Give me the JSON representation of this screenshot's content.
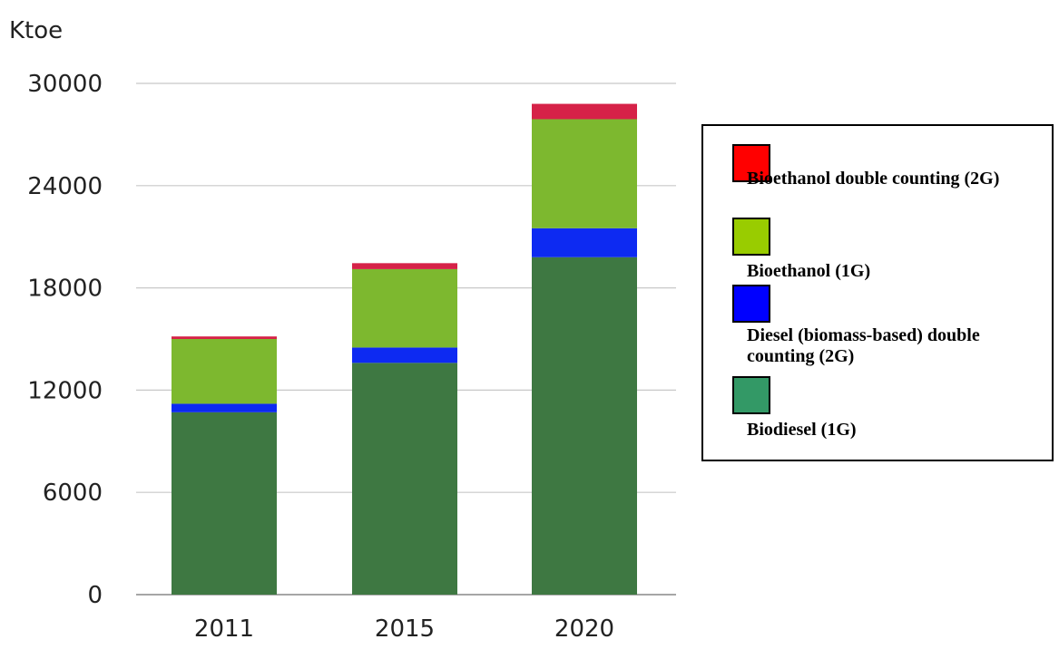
{
  "chart_data": {
    "type": "bar",
    "stacked": true,
    "categories": [
      "2011",
      "2015",
      "2020"
    ],
    "ylabel": "Ktoe",
    "ylim": [
      0,
      30000
    ],
    "yticks": [
      0,
      6000,
      12000,
      18000,
      24000,
      30000
    ],
    "grid": true,
    "legend_position": "right",
    "series": [
      {
        "name": "Biodiesel (1G)",
        "color": "#3e7842",
        "values": [
          10700,
          13600,
          19800
        ]
      },
      {
        "name": "Diesel (biomass-based) double counting (2G)",
        "color": "#0d2af2",
        "values": [
          500,
          900,
          1700
        ]
      },
      {
        "name": "Bioethanol (1G)",
        "color": "#7db82f",
        "values": [
          3800,
          4600,
          6400
        ]
      },
      {
        "name": "Bioethanol double counting (2G)",
        "color": "#d62248",
        "values": [
          150,
          350,
          900
        ]
      }
    ]
  },
  "legend": {
    "items": [
      {
        "label": "Bioethanol double counting (2G)",
        "color": "#ff0000"
      },
      {
        "label": "Bioethanol (1G)",
        "color": "#99cc00"
      },
      {
        "label": "Diesel (biomass-based) double counting (2G)",
        "color": "#0000ff"
      },
      {
        "label": "Biodiesel (1G)",
        "color": "#339966"
      }
    ]
  }
}
